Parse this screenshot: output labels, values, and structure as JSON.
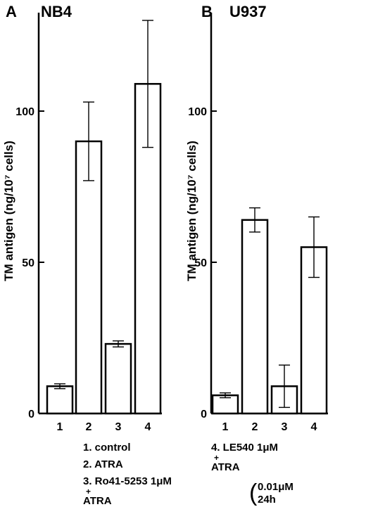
{
  "colors": {
    "ink": "#000000",
    "bar_fill": "#ffffff",
    "background": "#ffffff"
  },
  "chart_data": [
    {
      "type": "bar",
      "panel": "A",
      "title": "NB4",
      "ylabel": "TM antigen (ng/10⁷ cells)",
      "categories": [
        "1",
        "2",
        "3",
        "4"
      ],
      "values": [
        9,
        90,
        23,
        109
      ],
      "errors": [
        0.8,
        13,
        1,
        21
      ],
      "yticks": [
        0,
        50,
        100
      ],
      "ylim": [
        0,
        135
      ],
      "legend_items": [
        "1. control",
        "2. ATRA",
        "3. Ro41-5253 1μM",
        "+",
        "ATRA"
      ]
    },
    {
      "type": "bar",
      "panel": "B",
      "title": "U937",
      "ylabel": "TM antigen (ng/10⁷ cells)",
      "categories": [
        "1",
        "2",
        "3",
        "4"
      ],
      "values": [
        6,
        64,
        9,
        55
      ],
      "errors": [
        0.8,
        4,
        7,
        10
      ],
      "yticks": [
        0,
        50,
        100
      ],
      "ylim": [
        0,
        135
      ],
      "legend_items": [
        "4. LE540 1μM",
        "+",
        "ATRA",
        "0.01μM",
        "24h"
      ]
    }
  ]
}
